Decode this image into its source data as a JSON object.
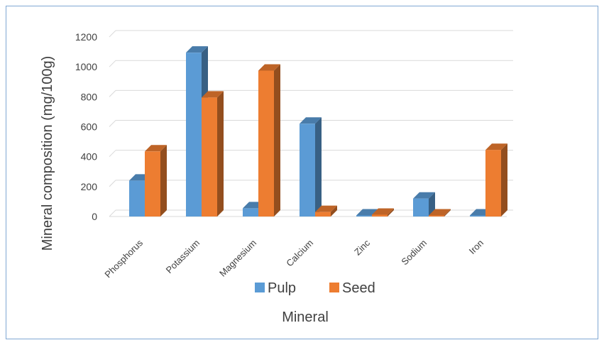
{
  "chart_data": {
    "type": "bar",
    "style": "3d-clustered-column",
    "title": "",
    "xlabel": "Mineral",
    "ylabel": "Mineral composition (mg/100g)",
    "ylim": [
      0,
      1200
    ],
    "yticks": [
      "0",
      "200",
      "400",
      "600",
      "800",
      "1000",
      "1200"
    ],
    "grid": true,
    "legend_position": "bottom",
    "categories": [
      "Phosphorus",
      "Potassium",
      "Magnesium",
      "Calcium",
      "Zinc",
      "Sodium",
      "Iron"
    ],
    "series": [
      {
        "name": "Pulp",
        "color": "#5b9bd5",
        "values": [
          240,
          1095,
          55,
          620,
          3,
          120,
          5
        ]
      },
      {
        "name": "Seed",
        "color": "#ed7d31",
        "values": [
          435,
          795,
          975,
          30,
          12,
          5,
          445
        ]
      }
    ]
  }
}
